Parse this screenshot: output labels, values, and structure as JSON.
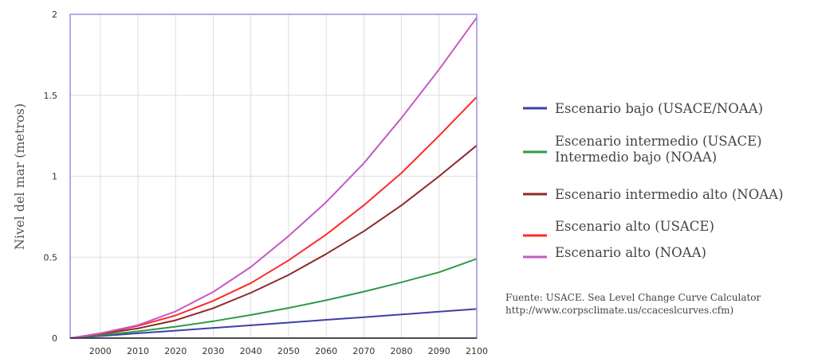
{
  "chart_data": {
    "type": "line",
    "ylabel": "Nivel del mar (metros)",
    "xlabel": "",
    "xlim": [
      1992,
      2100
    ],
    "ylim": [
      0,
      2
    ],
    "x_ticks": [
      2000,
      2010,
      2020,
      2030,
      2040,
      2050,
      2060,
      2070,
      2080,
      2090,
      2100
    ],
    "x_tick_labels": [
      "2000",
      "2010",
      "2020",
      "2030",
      "2040",
      "2050",
      "2060",
      "2070",
      "2080",
      "2090",
      "2100"
    ],
    "y_ticks": [
      0,
      0.5,
      1,
      1.5,
      2
    ],
    "y_tick_labels": [
      "0",
      "0.5",
      "1",
      "1.5",
      "2"
    ],
    "grid": true,
    "legend_position": "right",
    "x": [
      1992,
      2000,
      2010,
      2020,
      2030,
      2040,
      2050,
      2060,
      2070,
      2080,
      2090,
      2100
    ],
    "series": [
      {
        "legend": "Escenario bajo (USACE/NOAA)",
        "color": "#3f3fa8",
        "values": [
          0,
          0.013,
          0.03,
          0.046,
          0.063,
          0.079,
          0.096,
          0.113,
          0.129,
          0.146,
          0.163,
          0.18
        ]
      },
      {
        "legend": [
          "Escenario intermedio (USACE)",
          "Intermedio bajo (NOAA)"
        ],
        "color": "#2e9a46",
        "values": [
          0,
          0.018,
          0.042,
          0.071,
          0.104,
          0.143,
          0.186,
          0.234,
          0.287,
          0.345,
          0.407,
          0.49
        ]
      },
      {
        "legend": "Escenario intermedio alto (NOAA)",
        "color": "#8c2a2a",
        "values": [
          0,
          0.025,
          0.06,
          0.11,
          0.185,
          0.28,
          0.39,
          0.52,
          0.66,
          0.82,
          1.0,
          1.19
        ]
      },
      {
        "legend": "Escenario alto (USACE)",
        "color": "#ff2a2a",
        "values": [
          0,
          0.027,
          0.075,
          0.14,
          0.23,
          0.34,
          0.48,
          0.64,
          0.82,
          1.02,
          1.25,
          1.49
        ]
      },
      {
        "legend": "Escenario alto (NOAA)",
        "color": "#c45ac4",
        "values": [
          0,
          0.03,
          0.08,
          0.165,
          0.285,
          0.44,
          0.63,
          0.84,
          1.08,
          1.36,
          1.66,
          1.98
        ]
      }
    ],
    "source_lines": [
      "Fuente: USACE. Sea Level Change Curve Calculator",
      "http://www.corpsclimate.us/ccaceslcurves.cfm)"
    ]
  }
}
